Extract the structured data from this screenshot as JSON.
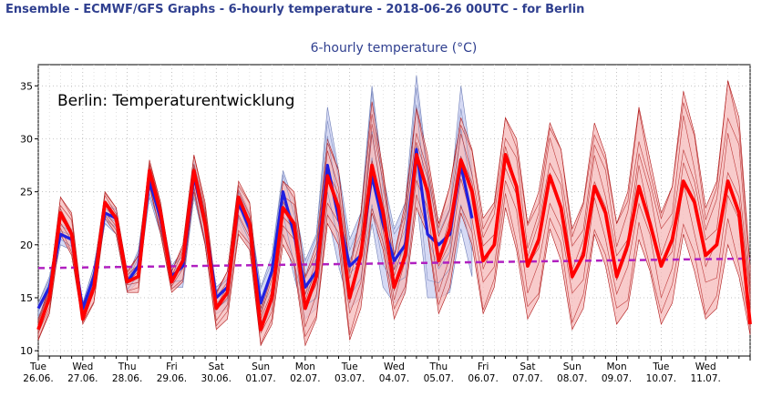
{
  "header": {
    "title": "Ensemble - ECMWF/GFS Graphs - 6-hourly temperature - 2018-06-26 00UTC - for Berlin"
  },
  "chart_data": {
    "type": "line",
    "title": "6-hourly temperature (°C)",
    "annotation": "Berlin: Temperaturentwicklung",
    "xlabel": "",
    "ylabel": "",
    "ylim": [
      9.5,
      37
    ],
    "yticks": [
      10,
      15,
      20,
      25,
      30,
      35
    ],
    "x_start": "2018-06-26 00UTC",
    "x_step_hours": 6,
    "x_tick_labels": [
      {
        "day": "Tue",
        "date": "26.06."
      },
      {
        "day": "Wed",
        "date": "27.06."
      },
      {
        "day": "Thu",
        "date": "28.06."
      },
      {
        "day": "Fri",
        "date": "29.06."
      },
      {
        "day": "Sat",
        "date": "30.06."
      },
      {
        "day": "Sun",
        "date": "01.07."
      },
      {
        "day": "Mon",
        "date": "02.07."
      },
      {
        "day": "Tue",
        "date": "03.07."
      },
      {
        "day": "Wed",
        "date": "04.07."
      },
      {
        "day": "Thu",
        "date": "05.07."
      },
      {
        "day": "Fri",
        "date": "06.07."
      },
      {
        "day": "Sat",
        "date": "07.07."
      },
      {
        "day": "Sun",
        "date": "08.07."
      },
      {
        "day": "Mon",
        "date": "09.07."
      },
      {
        "day": "Tue",
        "date": "10.07."
      },
      {
        "day": "Wed",
        "date": "11.07."
      }
    ],
    "grid": true,
    "colors": {
      "gfs_band": "#c8cdf0",
      "gfs_member": "#6f7fb8",
      "gfs_mean": "#2020e0",
      "ecmwf_band": "#f5b9b9",
      "ecmwf_member": "#b01818",
      "ecmwf_mean": "#ff0000",
      "climate": "#b020c0",
      "title": "#2f3f8f"
    },
    "series": [
      {
        "role": "ecmwf_mean",
        "values": [
          12,
          15,
          23,
          21,
          13,
          16,
          24,
          22.5,
          16.5,
          17,
          27,
          23,
          16.5,
          18.5,
          27,
          22,
          14,
          15.5,
          24.5,
          22,
          12,
          15,
          23.5,
          22,
          14,
          17,
          26.5,
          23.5,
          15,
          19,
          27.5,
          23,
          16,
          19,
          28.5,
          25,
          18.5,
          21.5,
          28,
          25,
          18.5,
          20,
          28.5,
          25.5,
          18,
          20.5,
          26.5,
          23.5,
          17,
          19,
          25.5,
          23,
          17,
          20,
          25.5,
          22,
          18,
          20.5,
          26,
          24,
          19,
          20,
          26,
          23,
          12.5
        ]
      },
      {
        "role": "ecmwf_min",
        "values": [
          11,
          13.5,
          21,
          19,
          12.5,
          14.5,
          22.5,
          21,
          15.5,
          15.5,
          25.5,
          21,
          15.5,
          16.5,
          25,
          20,
          12,
          13,
          21,
          19.5,
          10.5,
          12.5,
          20,
          18,
          10.5,
          13,
          22,
          20,
          11,
          14,
          23,
          19.5,
          13,
          15.5,
          23.5,
          21,
          13.5,
          16,
          23,
          20,
          13.5,
          16,
          23.5,
          19.5,
          13,
          15,
          21.5,
          18.5,
          12,
          14,
          21,
          18,
          12.5,
          14,
          20.5,
          17.5,
          12.5,
          14.5,
          21,
          17.5,
          13,
          14,
          20,
          17,
          11.5
        ]
      },
      {
        "role": "ecmwf_max",
        "values": [
          13,
          16,
          24.5,
          23,
          14,
          17.5,
          25,
          23.5,
          17.5,
          19,
          28,
          24,
          17.5,
          20,
          28.5,
          24,
          15.5,
          17.5,
          26,
          24,
          14,
          17.5,
          26,
          25,
          17,
          20,
          30,
          27,
          18,
          23,
          33.5,
          27,
          19,
          24,
          33,
          28.5,
          22,
          25.5,
          32,
          29,
          22.5,
          24,
          32,
          30,
          22,
          25,
          31.5,
          29,
          21.5,
          24,
          31.5,
          28.5,
          22,
          25,
          33,
          28,
          23,
          25.5,
          34.5,
          30.5,
          23.5,
          26,
          35.5,
          32,
          18
        ]
      },
      {
        "role": "gfs_mean",
        "values": [
          14,
          16,
          21,
          20.5,
          14,
          17,
          23,
          22.5,
          16.5,
          18,
          26,
          22.5,
          17,
          18,
          26.5,
          22,
          15,
          16,
          24,
          21.5,
          14.5,
          17.5,
          25,
          21,
          16,
          17.5,
          27.5,
          22.5,
          18,
          19,
          26.5,
          22,
          18.5,
          20,
          29,
          21,
          20,
          21,
          27.5,
          22.5
        ]
      },
      {
        "role": "gfs_min",
        "values": [
          13,
          15,
          20,
          19.5,
          13.5,
          16,
          22,
          21,
          15.5,
          16.5,
          24.5,
          21,
          16,
          16,
          24.5,
          20,
          13.5,
          14,
          22,
          19.5,
          12,
          14,
          21.5,
          17,
          13,
          14,
          23,
          18,
          14,
          15,
          22,
          16,
          14.5,
          15.5,
          24.5,
          15,
          15,
          15.5,
          21.5,
          17
        ]
      },
      {
        "role": "gfs_max",
        "values": [
          14.5,
          17,
          22,
          21.5,
          14.5,
          18,
          24,
          23.5,
          17,
          19.5,
          27,
          23.5,
          18,
          19.5,
          28,
          23,
          16,
          17,
          25.5,
          23,
          16,
          19,
          27,
          24,
          18.5,
          21,
          33,
          27,
          20.5,
          23,
          35,
          26.5,
          21.5,
          24,
          36,
          27,
          22,
          24,
          35,
          27.5
        ]
      },
      {
        "role": "climate",
        "values": [
          17.8,
          18.7
        ]
      }
    ]
  }
}
